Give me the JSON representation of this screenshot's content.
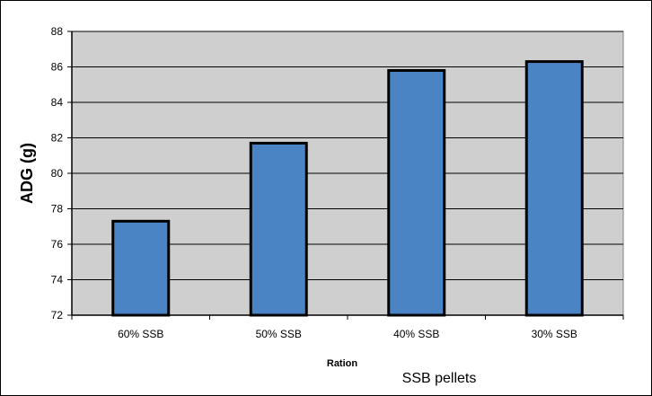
{
  "chart_data": {
    "type": "bar",
    "categories": [
      "60% SSB",
      "50% SSB",
      "40% SSB",
      "30% SSB"
    ],
    "values": [
      77.3,
      81.7,
      85.8,
      86.3
    ],
    "xlabel": "Ration",
    "ylabel": "ADG (g)",
    "caption": "SSB pellets",
    "ylim": [
      72,
      88
    ],
    "ytick_labels": [
      "72",
      "74",
      "76",
      "78",
      "80",
      "82",
      "84",
      "86",
      "88"
    ],
    "grid": true,
    "colors": {
      "bar_fill": "#4a84c4",
      "bar_stroke": "#000000",
      "plot_background": "#cfcfcf",
      "gridline": "#000000"
    }
  }
}
